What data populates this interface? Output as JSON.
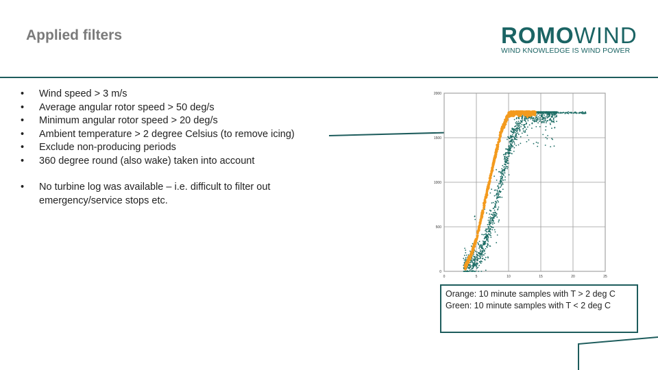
{
  "slide": {
    "title": "Applied filters"
  },
  "logo": {
    "word_bold": "ROMO",
    "word_light": "WIND",
    "tagline": "WIND KNOWLEDGE IS WIND POWER"
  },
  "bullets": [
    "Wind speed > 3 m/s",
    "Average angular rotor speed > 50 deg/s",
    "Minimum angular rotor speed > 20 deg/s",
    "Ambient temperature > 2 degree Celsius (to remove icing)",
    "Exclude non-producing periods",
    "360 degree round (also wake) taken into account"
  ],
  "note": "No turbine log was available – i.e. difficult to filter out emergency/service stops etc.",
  "legend": {
    "orange": "Orange: 10 minute samples with T > 2 deg C",
    "green": "Green: 10 minute samples with T < 2 deg C"
  },
  "colors": {
    "accent": "#1d5c5c",
    "orange": "#f39a1e",
    "green": "#1a6b63"
  },
  "chart_data": {
    "type": "scatter",
    "title": "",
    "xlabel": "",
    "ylabel": "",
    "xlim": [
      0,
      25
    ],
    "ylim": [
      0,
      2000
    ],
    "x_ticks": [
      "0",
      "5",
      "10",
      "15",
      "20",
      "25"
    ],
    "y_ticks": [
      "0",
      "500",
      "1000",
      "1500",
      "2000"
    ],
    "grid": true,
    "series": [
      {
        "color": "#1a6b63",
        "curve_x": [
          3,
          5,
          6,
          7,
          8,
          9,
          10,
          11,
          12,
          13,
          14,
          15,
          17,
          20,
          22
        ],
        "curve_y": [
          30,
          130,
          260,
          460,
          740,
          1060,
          1360,
          1580,
          1700,
          1760,
          1780,
          1780,
          1780,
          1780,
          1780
        ]
      },
      {
        "color": "#f39a1e",
        "curve_x": [
          3,
          4,
          5,
          6,
          7,
          8,
          9,
          10,
          11,
          12,
          13,
          15,
          20,
          22
        ],
        "curve_y": [
          30,
          150,
          360,
          680,
          1000,
          1320,
          1600,
          1760,
          1780,
          1780,
          1780,
          1780,
          1780,
          1780
        ]
      }
    ]
  }
}
